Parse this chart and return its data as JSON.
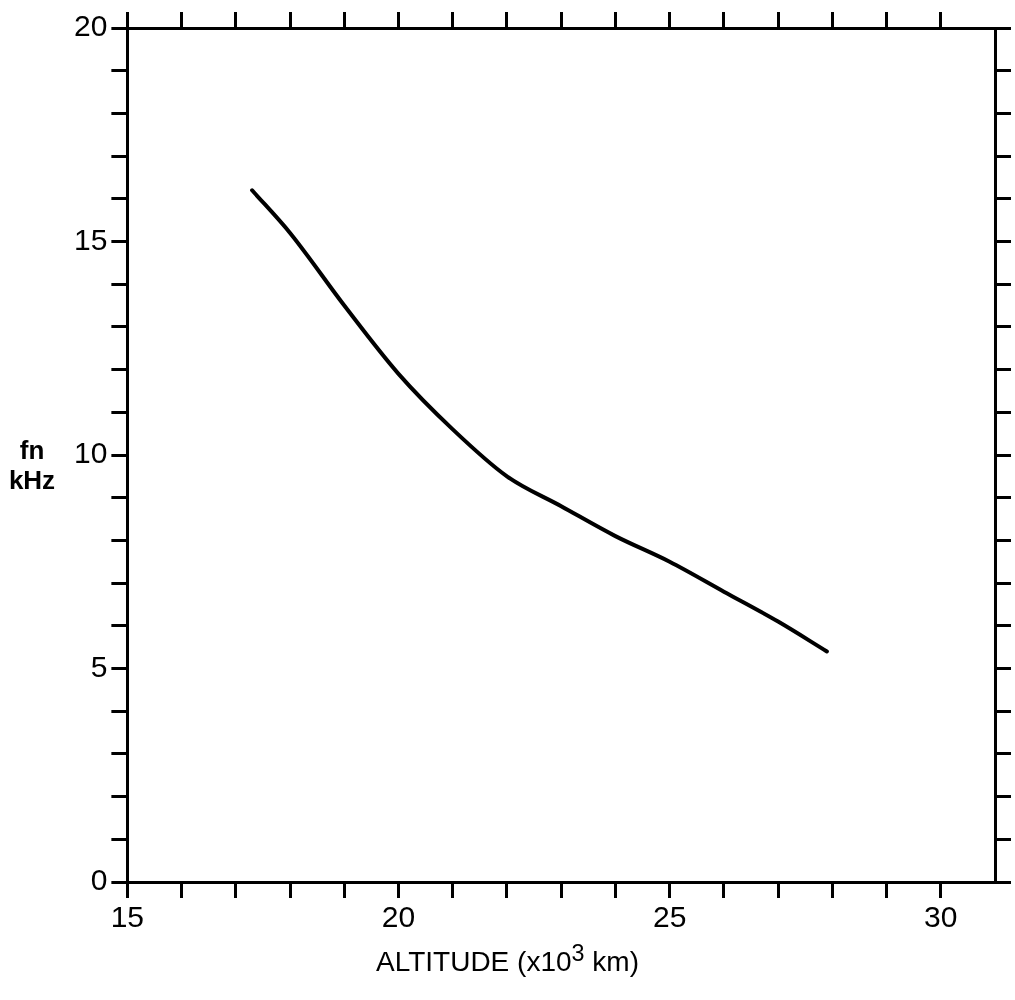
{
  "chart_data": {
    "type": "line",
    "xlabel": "ALTITUDE (x10$^{3}$ km)",
    "ylabel": "fn kHz",
    "x": [
      17.3,
      18,
      19,
      20,
      21,
      22,
      23,
      24,
      25,
      26,
      27,
      27.9
    ],
    "series": [
      {
        "color": "#000000",
        "values": [
          16.2,
          15.2,
          13.5,
          11.9,
          10.6,
          9.5,
          8.8,
          8.1,
          7.5,
          6.8,
          6.1,
          5.4
        ]
      }
    ],
    "xlim": [
      15,
      31
    ],
    "xticks": [
      15,
      {
        "value": 16,
        "label": null
      },
      {
        "value": 17,
        "label": null
      },
      {
        "value": 18,
        "label": null
      },
      {
        "value": 19,
        "label": null
      },
      20,
      {
        "value": 21,
        "label": null
      },
      {
        "value": 22,
        "label": null
      },
      {
        "value": 23,
        "label": null
      },
      {
        "value": 24,
        "label": null
      },
      25,
      {
        "value": 26,
        "label": null
      },
      {
        "value": 27,
        "label": null
      },
      {
        "value": 28,
        "label": null
      },
      {
        "value": 29,
        "label": null
      },
      30
    ],
    "ylim": [
      0,
      20
    ],
    "yticks": [
      0,
      {
        "value": 1,
        "label": null
      },
      {
        "value": 2,
        "label": null
      },
      {
        "value": 3,
        "label": null
      },
      {
        "value": 4,
        "label": null
      },
      5,
      {
        "value": 6,
        "label": null
      },
      {
        "value": 7,
        "label": null
      },
      {
        "value": 8,
        "label": null
      },
      {
        "value": 9,
        "label": null
      },
      10,
      {
        "value": 11,
        "label": null
      },
      {
        "value": 12,
        "label": null
      },
      {
        "value": 13,
        "label": null
      },
      {
        "value": 14,
        "label": null
      },
      15,
      {
        "value": 16,
        "label": null
      },
      {
        "value": 17,
        "label": null
      },
      {
        "value": 18,
        "label": null
      },
      {
        "value": 19,
        "label": null
      },
      20
    ],
    "grid": false,
    "legend": false,
    "marker": "none",
    "line_style": "solid"
  }
}
